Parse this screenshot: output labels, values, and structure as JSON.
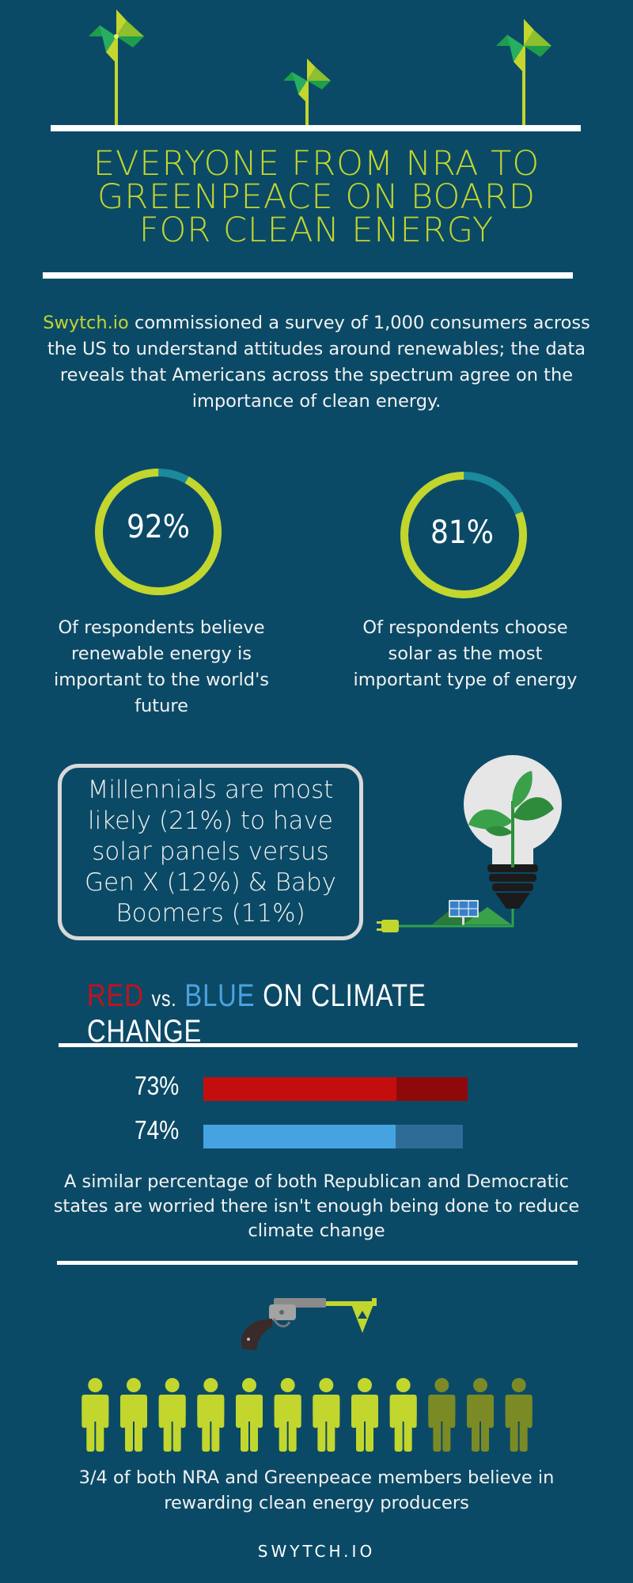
{
  "header": {
    "title_lines": [
      "EVERYONE FROM NRA TO",
      "GREENPEACE ON BOARD",
      "FOR CLEAN ENERGY"
    ]
  },
  "intro": {
    "brand": "Swytch.io",
    "text": " commissioned a survey of 1,000 consumers across the US to understand attitudes around renewables; the data reveals that Americans across the spectrum agree on the importance of clean energy."
  },
  "stats": [
    {
      "value_label": "92%",
      "value": 92,
      "caption": "Of respondents believe renewable energy is important to the world's future"
    },
    {
      "value_label": "81%",
      "value": 81,
      "caption": "Of respondents choose solar as the most important type of energy"
    }
  ],
  "callout": {
    "text": "Millennials are most likely (21%) to have solar panels versus Gen X (12%) & Baby Boomers (11%)"
  },
  "climate": {
    "heading_red": "RED",
    "heading_vs": "vs.",
    "heading_blue": "BLUE",
    "heading_rest": "ON CLIMATE CHANGE",
    "bars": [
      {
        "label": "73%",
        "value": 73,
        "color": "#c40d0d",
        "track_color": "#8e0a0a"
      },
      {
        "label": "74%",
        "value": 74,
        "color": "#46a3e2",
        "track_color": "#2e6b97"
      }
    ],
    "caption": "A similar percentage of both Republican and Democratic states are worried there isn't enough being done to reduce climate change"
  },
  "nra": {
    "people_total": 12,
    "people_highlighted": 9,
    "highlight_color": "#c2d62e",
    "muted_color": "#7c8a26",
    "caption": "3/4 of both NRA and Greenpeace members believe in rewarding clean energy producers"
  },
  "footer": {
    "text": "SWYTCH.IO"
  },
  "colors": {
    "background": "#0b4a66",
    "accent": "#c2d62e",
    "ring_remainder": "#1a8a9c"
  }
}
